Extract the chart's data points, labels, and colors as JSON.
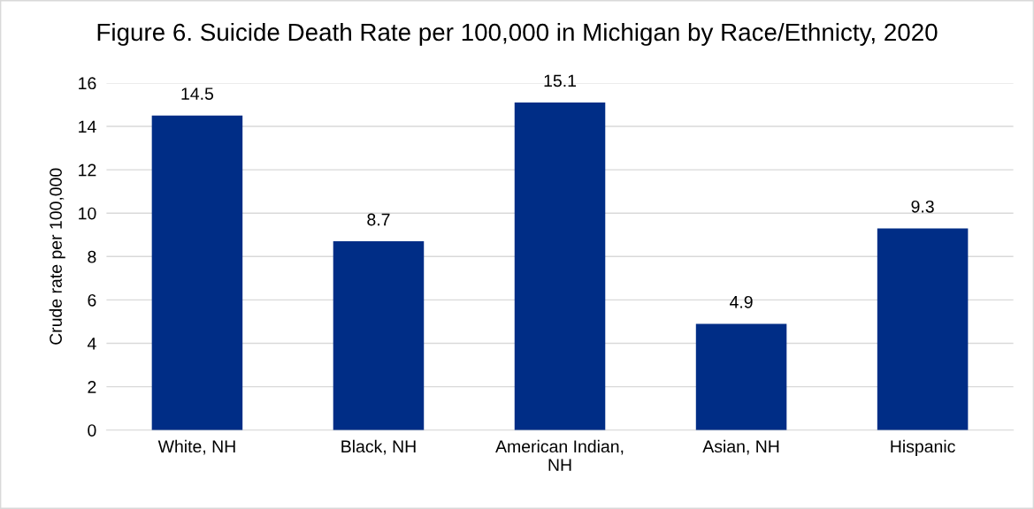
{
  "chart_data": {
    "type": "bar",
    "title": "Figure 6. Suicide Death Rate per 100,000 in Michigan by Race/Ethnicty, 2020",
    "ylabel": "Crude rate per 100,000",
    "categories": [
      "White, NH",
      "Black, NH",
      "American Indian, NH",
      "Asian, NH",
      "Hispanic"
    ],
    "values": [
      14.5,
      8.7,
      15.1,
      4.9,
      9.3
    ],
    "color": "#002d86",
    "ylim": [
      0,
      16
    ],
    "yticks": [
      0,
      2,
      4,
      6,
      8,
      10,
      12,
      14,
      16
    ],
    "grid": "y",
    "data_labels": true
  }
}
